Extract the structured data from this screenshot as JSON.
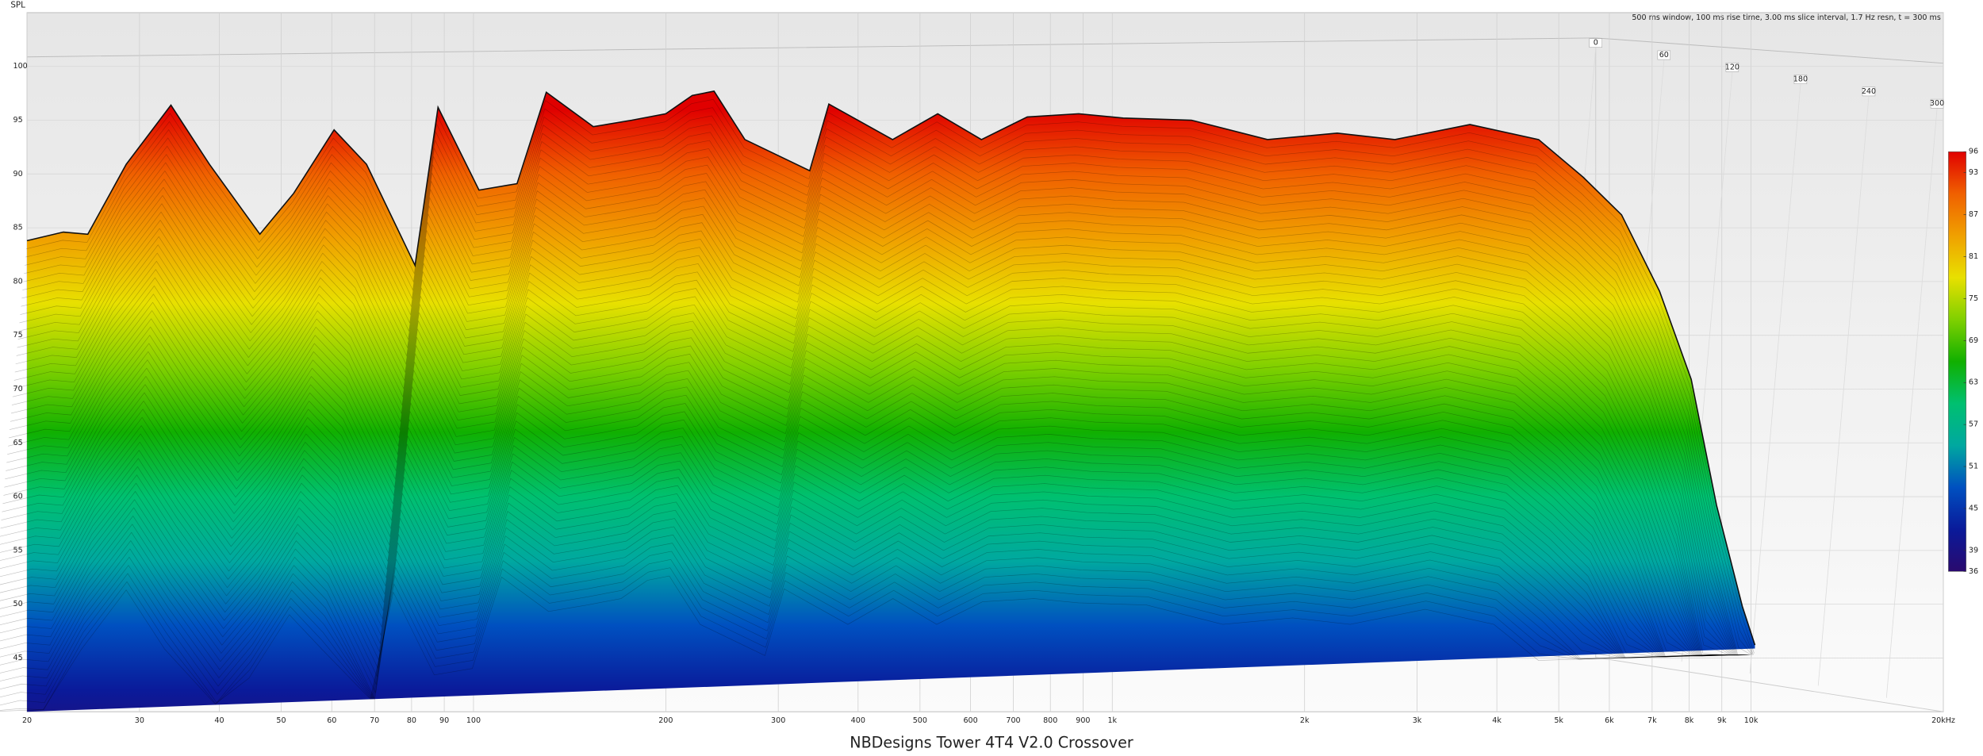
{
  "chart_data": {
    "type": "waterfall",
    "title": "NBDesigns Tower 4T4 V2.0 Crossover",
    "y_label": "SPL",
    "annotation": "500 ms window, 100 ms rise time, 3.00 ms slice interval, 1.7 Hz resn, t = 300 ms",
    "x": [
      20,
      22.8,
      24.9,
      28.6,
      33.6,
      38.6,
      46.3,
      52.3,
      60.5,
      68,
      81,
      88,
      102,
      117,
      130,
      154,
      177,
      200,
      220,
      238,
      266,
      336,
      360,
      453,
      533,
      624,
      736,
      886,
      1040,
      1330,
      1750,
      2250,
      2770,
      3630,
      4650,
      5460,
      6270,
      7190,
      8060,
      8830,
      9690,
      10140
    ],
    "values": [
      83.8,
      84.6,
      84.4,
      90.9,
      96.4,
      90.9,
      84.4,
      88.2,
      94.1,
      90.9,
      81.5,
      96.2,
      88.5,
      89.1,
      97.6,
      94.4,
      95,
      95.6,
      97.3,
      97.7,
      93.2,
      90.3,
      96.5,
      93.2,
      95.6,
      93.2,
      95.3,
      95.6,
      95.2,
      95,
      93.2,
      93.8,
      93.2,
      94.6,
      93.2,
      89.7,
      86.2,
      79.1,
      70.9,
      59.2,
      49.8,
      46.2
    ],
    "x_scale": "log",
    "xlim": [
      20,
      20000
    ],
    "xticks": [
      20,
      30,
      40,
      50,
      60,
      70,
      80,
      90,
      100,
      200,
      300,
      400,
      500,
      600,
      700,
      800,
      900,
      {
        "value": 1000,
        "label": "1k"
      },
      {
        "value": 2000,
        "label": "2k"
      },
      {
        "value": 3000,
        "label": "3k"
      },
      {
        "value": 4000,
        "label": "4k"
      },
      {
        "value": 5000,
        "label": "5k"
      },
      {
        "value": 6000,
        "label": "6k"
      },
      {
        "value": 7000,
        "label": "7k"
      },
      {
        "value": 8000,
        "label": "8k"
      },
      {
        "value": 9000,
        "label": "9k"
      },
      {
        "value": 10000,
        "label": "10k"
      },
      {
        "value": 20000,
        "label": "20kHz"
      }
    ],
    "ylim": [
      40,
      105
    ],
    "yticks": [
      45,
      50,
      55,
      60,
      65,
      70,
      75,
      80,
      85,
      90,
      95,
      100
    ],
    "zlim": [
      0,
      300
    ],
    "zticks": [
      0,
      60,
      120,
      180,
      240,
      300
    ],
    "grid": true,
    "colorbar": {
      "lim": [
        36,
        96
      ],
      "ticks": [
        36,
        39,
        45,
        51,
        57,
        63,
        69,
        75,
        81,
        87,
        93,
        96
      ],
      "colors": [
        "#2a0a6e",
        "#0a1a9a",
        "#0050c0",
        "#00a8a0",
        "#00c070",
        "#10b000",
        "#80d000",
        "#e8e000",
        "#f0a000",
        "#f06000",
        "#e00000"
      ]
    }
  }
}
